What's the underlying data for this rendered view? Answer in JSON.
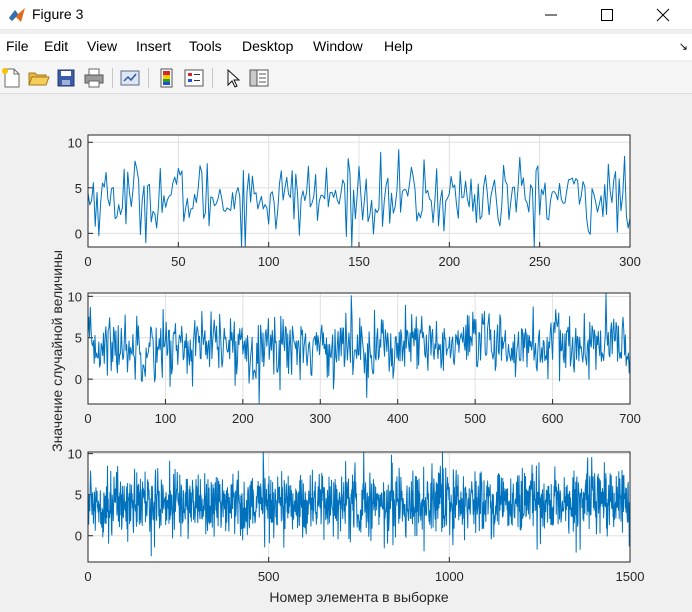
{
  "window": {
    "title": "Figure 3",
    "icon": "matlab-icon",
    "controls": [
      "minimize-icon",
      "maximize-icon",
      "close-icon"
    ]
  },
  "menu": {
    "items": [
      "File",
      "Edit",
      "View",
      "Insert",
      "Tools",
      "Desktop",
      "Window",
      "Help"
    ],
    "dock_arrow": "↘"
  },
  "toolbar": {
    "icons": [
      "new-figure-icon",
      "open-file-icon",
      "save-icon",
      "print-icon",
      "link-plot-icon",
      "colorbar-icon",
      "legend-icon",
      "pointer-icon",
      "property-inspector-icon"
    ]
  },
  "colors": {
    "line": "#0072BD",
    "axes_bg": "#ffffff",
    "grid": "#e0e0e0",
    "figure_bg": "#f0f0f0"
  },
  "chart_data": [
    {
      "type": "line",
      "title": "",
      "xlabel": "",
      "ylabel": "",
      "xlim": [
        0,
        300
      ],
      "ylim": [
        -1.5,
        10.8
      ],
      "xticks": [
        0,
        50,
        100,
        150,
        200,
        250,
        300
      ],
      "yticks": [
        0,
        5,
        10
      ],
      "grid": true,
      "n_points": 300,
      "mean": 4.0,
      "std": 2.0,
      "series_note": "random sample, values range roughly -1 to 10.8, centered near 4"
    },
    {
      "type": "line",
      "title": "",
      "xlabel": "",
      "ylabel": "Значение случайной величины",
      "xlim": [
        0,
        700
      ],
      "ylim": [
        -3,
        10.4
      ],
      "xticks": [
        0,
        100,
        200,
        300,
        400,
        500,
        600,
        700
      ],
      "yticks": [
        0,
        5,
        10
      ],
      "grid": true,
      "n_points": 700,
      "mean": 4.0,
      "std": 2.0,
      "series_note": "random sample, values range roughly -2.8 to 10.3, centered near 4"
    },
    {
      "type": "line",
      "title": "",
      "xlabel": "Номер элемента в выборке",
      "ylabel": "",
      "xlim": [
        0,
        1500
      ],
      "ylim": [
        -3.2,
        10.2
      ],
      "xticks": [
        0,
        500,
        1000,
        1500
      ],
      "yticks": [
        0,
        5,
        10
      ],
      "grid": true,
      "n_points": 1500,
      "mean": 4.0,
      "std": 2.0,
      "series_note": "random sample, values range roughly -3 to 10, centered near 4"
    }
  ]
}
